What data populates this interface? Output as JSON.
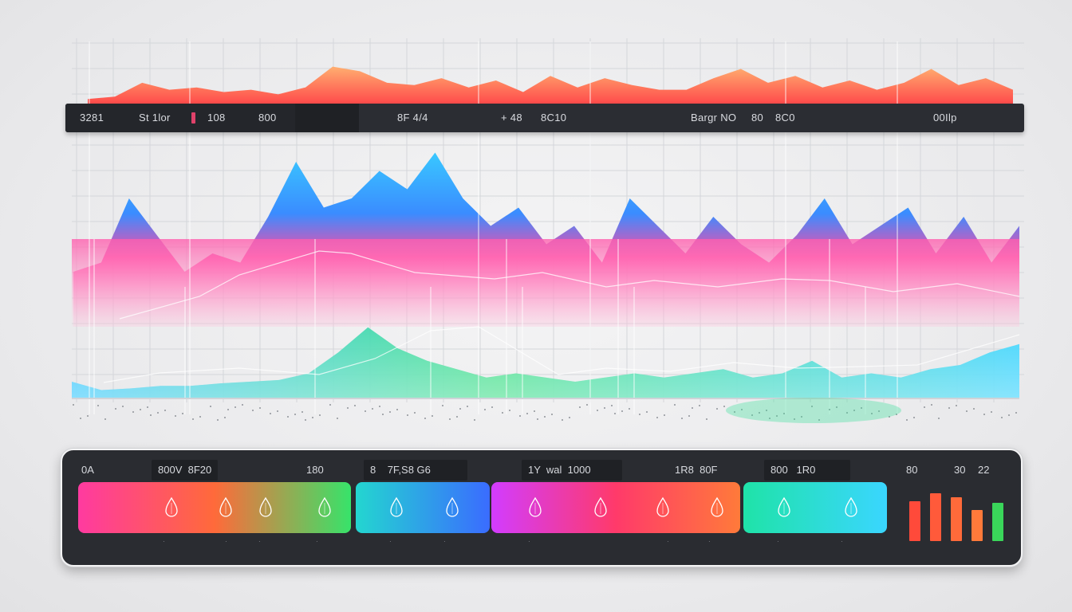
{
  "top_bar": {
    "labels": [
      "3281",
      "St 1lor",
      "108",
      "800",
      "8F 4/4",
      "+ 48",
      "8C10",
      "Bargr NO",
      "80",
      "8C0",
      "00Ilp"
    ]
  },
  "bottom_panel": {
    "tabs": [
      "0A",
      "800V",
      "8F20",
      "180",
      "8",
      "7F,S8 G6",
      "1Y",
      "wal",
      "1000",
      "1R8",
      "80F",
      "800",
      "1R0",
      "80",
      "30",
      "22"
    ],
    "bands": [
      {
        "from": "#ff3aa0",
        "via": "#ff6a3a",
        "to": "#37e36a"
      },
      {
        "from": "#23d6d0",
        "to": "#3a6cff"
      },
      {
        "from": "#d23cff",
        "via": "#ff3a6a",
        "to": "#ff7a3a"
      },
      {
        "from": "#1fe3a8",
        "to": "#3ad6ff"
      }
    ],
    "mini_bars": [
      {
        "value": 0.72,
        "color": "#ff4a3a"
      },
      {
        "value": 0.86,
        "color": "#ff5a3a"
      },
      {
        "value": 0.78,
        "color": "#ff6a3a"
      },
      {
        "value": 0.55,
        "color": "#ff7a3a"
      },
      {
        "value": 0.68,
        "color": "#3ad65a"
      }
    ]
  },
  "chart_data": {
    "type": "area",
    "grid": true,
    "series": [
      {
        "color_top": "#ff9a55",
        "color_bottom": "#ff4a4a",
        "values": [
          0.1,
          0.15,
          0.45,
          0.3,
          0.35,
          0.25,
          0.3,
          0.2,
          0.35,
          0.8,
          0.7,
          0.45,
          0.4,
          0.55,
          0.35,
          0.5,
          0.25,
          0.6,
          0.35,
          0.55,
          0.4,
          0.3,
          0.3,
          0.55,
          0.75,
          0.45,
          0.6,
          0.35,
          0.5,
          0.3,
          0.45,
          0.75,
          0.4,
          0.55,
          0.3
        ]
      },
      {
        "color_top": "#3ad0ff",
        "color_bottom": "#ff3aa0",
        "values": [
          0.3,
          0.35,
          0.7,
          0.5,
          0.3,
          0.4,
          0.35,
          0.6,
          0.9,
          0.65,
          0.7,
          0.85,
          0.75,
          0.95,
          0.7,
          0.55,
          0.65,
          0.45,
          0.55,
          0.35,
          0.7,
          0.55,
          0.4,
          0.6,
          0.45,
          0.35,
          0.5,
          0.7,
          0.45,
          0.55,
          0.65,
          0.4,
          0.6,
          0.35,
          0.55
        ]
      },
      {
        "color_top": "#3ad6ff",
        "color_bottom": "#39e07a",
        "values": [
          0.2,
          0.1,
          0.12,
          0.15,
          0.15,
          0.18,
          0.2,
          0.22,
          0.3,
          0.55,
          0.85,
          0.6,
          0.45,
          0.35,
          0.25,
          0.3,
          0.25,
          0.2,
          0.25,
          0.3,
          0.25,
          0.3,
          0.35,
          0.25,
          0.3,
          0.45,
          0.25,
          0.3,
          0.25,
          0.35,
          0.4,
          0.55,
          0.65
        ]
      }
    ]
  }
}
